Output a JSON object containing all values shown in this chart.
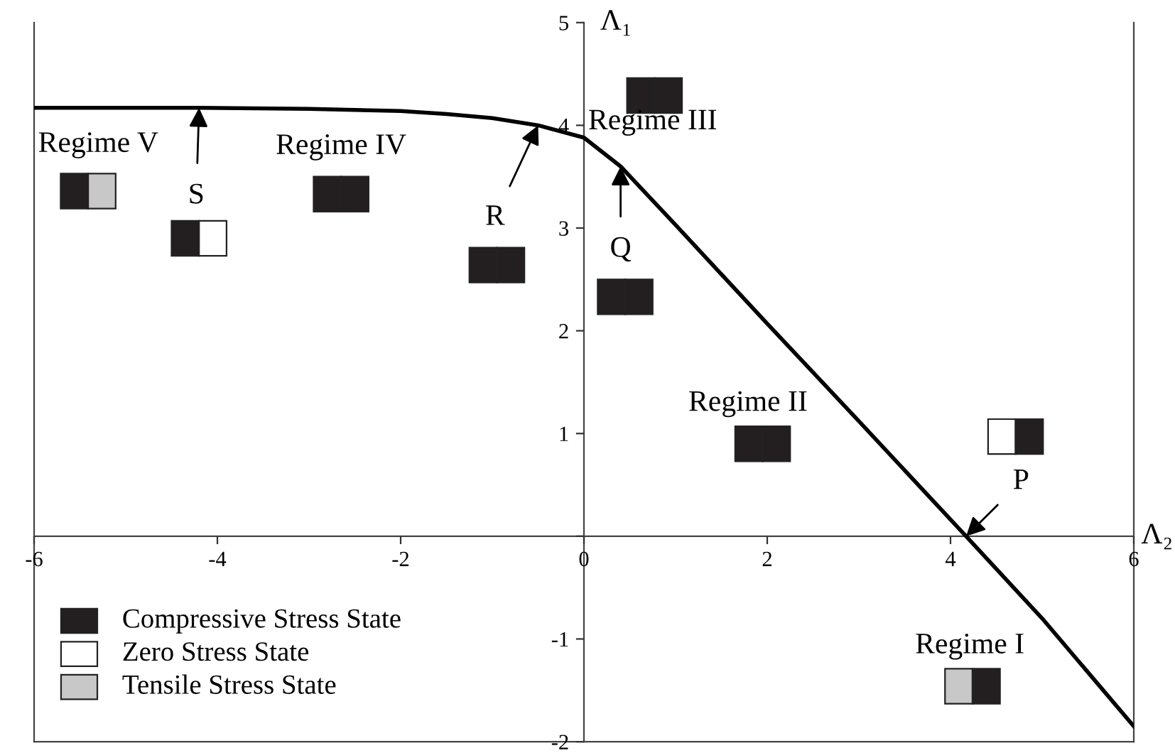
{
  "chart_data": {
    "type": "line",
    "xlabel": "Λ₂",
    "ylabel": "Λ₁",
    "series": [
      {
        "color": "#000000",
        "x": [
          -6,
          -5,
          -4.2,
          -3,
          -2,
          -1.5,
          -1,
          -0.5,
          0,
          0.4,
          1,
          2,
          3,
          4.17,
          5,
          6
        ],
        "values": [
          4.17,
          4.17,
          4.17,
          4.16,
          4.14,
          4.11,
          4.07,
          4.0,
          3.88,
          3.6,
          3.03,
          2.07,
          1.12,
          0,
          -0.8,
          -1.85
        ]
      }
    ],
    "xlim": [
      -6,
      6
    ],
    "ylim": [
      -2,
      5
    ],
    "xticks": [
      -6,
      -4,
      -2,
      0,
      2,
      4,
      6
    ],
    "yticks": [
      -2,
      -1,
      {
        "value": 0,
        "label": null
      },
      1,
      2,
      3,
      4,
      5
    ],
    "grid": false,
    "marker": "none",
    "line_style": "solid",
    "annotations": [
      "Regime V",
      "Regime IV",
      "Regime III",
      "Regime II",
      "Regime I",
      {
        "text": "S",
        "x": -4.2,
        "y": 4.17
      },
      {
        "text": "R",
        "x": -0.5,
        "y": 4.0
      },
      {
        "text": "Q",
        "x": 0.4,
        "y": 3.6
      },
      {
        "text": "P",
        "x": 4.17,
        "y": 0
      },
      "Compressive Stress State",
      "Zero Stress State",
      "Tensile Stress State"
    ]
  }
}
